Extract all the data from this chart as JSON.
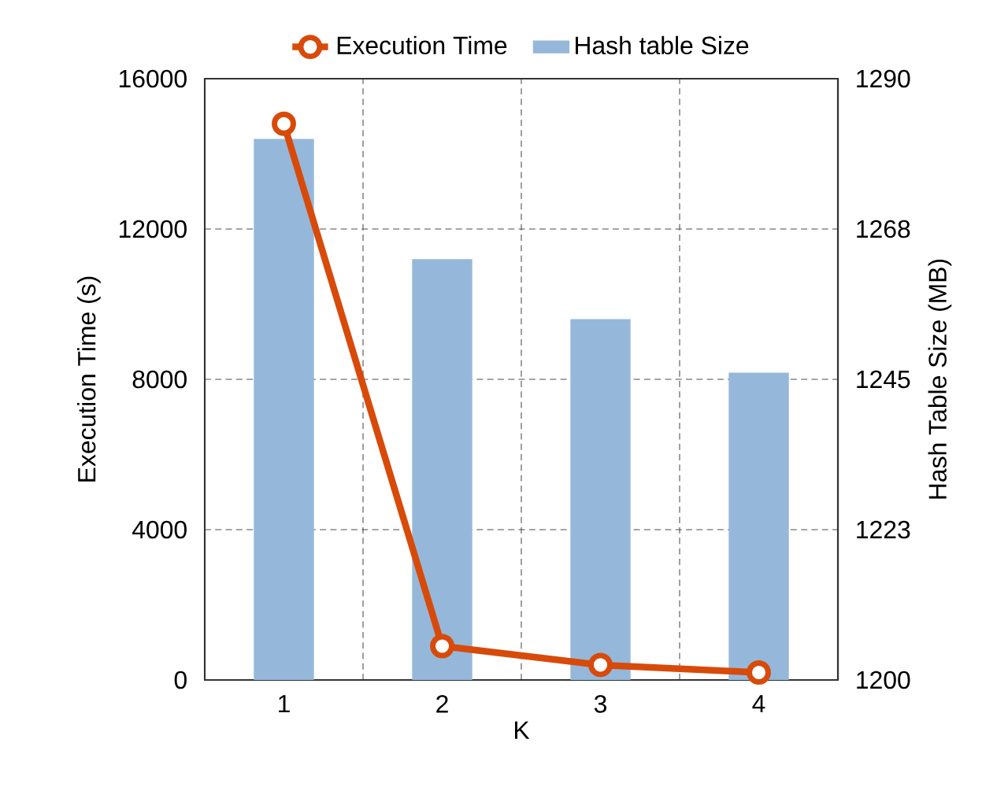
{
  "chart_data": {
    "type": "bar",
    "categories": [
      "1",
      "2",
      "3",
      "4"
    ],
    "series": [
      {
        "name": "Execution Time",
        "type": "line",
        "axis": "y",
        "color": "#d84a0a",
        "marker": "circle",
        "values": [
          14800,
          900,
          400,
          200
        ]
      },
      {
        "name": "Hash table Size",
        "axis": "y2",
        "color": "#95b8da",
        "values": [
          1281,
          1263,
          1254,
          1246
        ]
      }
    ],
    "xlabel": "K",
    "ylabel": "Execution Time (s)",
    "y2label": "Hash Table Size (MB)",
    "ylim": [
      0,
      16000
    ],
    "yticks": [
      0,
      4000,
      8000,
      12000,
      16000
    ],
    "y2lim": [
      1200,
      1290
    ],
    "y2ticks": [
      1200,
      {
        "value": 1222.5,
        "label": "1223"
      },
      1245,
      {
        "value": 1267.5,
        "label": "1268"
      },
      1290
    ],
    "grid": true,
    "legend": "top"
  }
}
